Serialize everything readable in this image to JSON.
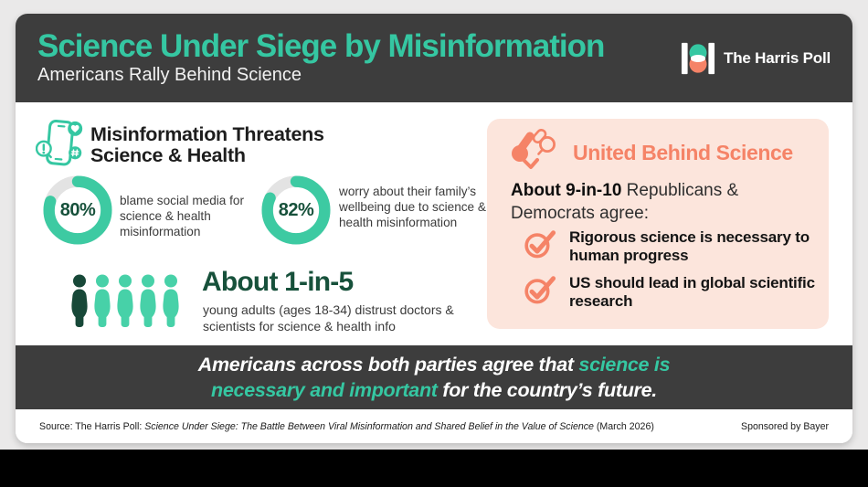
{
  "header": {
    "title": "Science Under Siege by Misinformation",
    "subtitle": "Americans Rally Behind Science",
    "logo_text": "The Harris Poll"
  },
  "colors": {
    "teal": "#35c7a2",
    "mint": "#47d1a8",
    "dark_green": "#17513b",
    "coral": "#f58367",
    "charcoal": "#3d3d3d",
    "pink_panel": "#fce5dc",
    "ring_gray": "#e3e3e3"
  },
  "icons": {
    "phone_misinformation": "phone-with-alert-heart-hashtag-bubbles",
    "united_science": "crossed-microscopes",
    "agree": "circled-checkmark",
    "logo": "harris-poll-monogram"
  },
  "left_section": {
    "heading": "Misinformation Threatens\nScience & Health"
  },
  "right_section": {
    "title": "United Behind Science",
    "lead_bold": "About 9-in-10",
    "lead_rest": " Republicans & Democrats agree:",
    "items": [
      {
        "text": "Rigorous science is necessary to human progress"
      },
      {
        "text": "US should lead in global scientific research"
      }
    ]
  },
  "quote": {
    "line1_white": "Americans across both parties agree that",
    "line1_teal": " science is",
    "line2_teal": "necessary and important",
    "line2_white": " for the country’s future."
  },
  "footer": {
    "source_prefix": "Source: The Harris Poll: ",
    "source_title": "Science Under Siege: The Battle Between Viral Misinformation and Shared Belief in the Value of Science",
    "source_suffix": " (March 2026)",
    "sponsor": "Sponsored by Bayer"
  },
  "chart_data": [
    {
      "type": "pie",
      "id": "donut-blame-social-media",
      "values": [
        80,
        20
      ],
      "center_label": "80%",
      "label": "blame social media for science & health misinformation",
      "colors": [
        "#3dcaa2",
        "#e3e3e3"
      ]
    },
    {
      "type": "pie",
      "id": "donut-family-wellbeing",
      "values": [
        82,
        18
      ],
      "center_label": "82%",
      "label": "worry about their family’s wellbeing due to science & health misinformation",
      "colors": [
        "#3dcaa2",
        "#e3e3e3"
      ]
    },
    {
      "type": "pictograph",
      "id": "one-in-five",
      "headline": "About 1-in-5",
      "label": "young adults (ages 18-34) distrust doctors & scientists for science & health info",
      "highlighted": 1,
      "total": 5,
      "highlight_color": "#174838",
      "base_color": "#47d1a8"
    }
  ]
}
